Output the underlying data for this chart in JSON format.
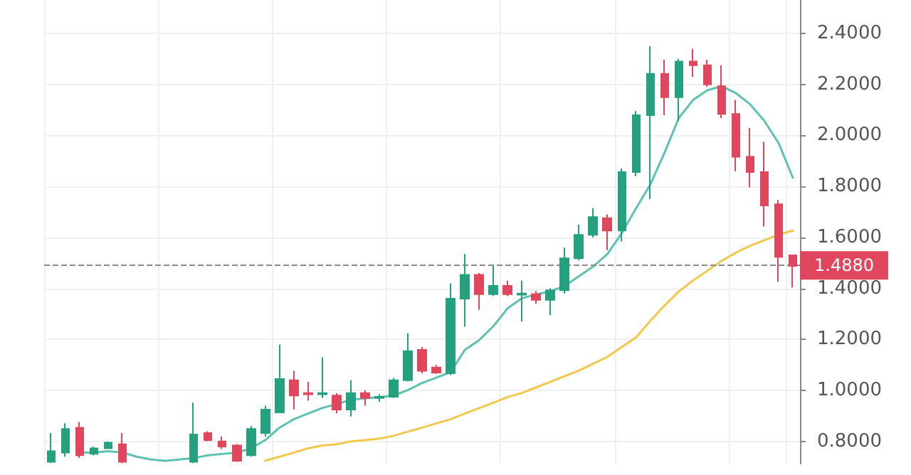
{
  "chart_data": {
    "type": "candlestick",
    "categories": [
      null,
      null,
      null,
      null,
      null,
      null,
      null,
      null,
      null,
      null,
      null,
      null,
      null,
      null,
      null,
      null,
      null,
      null,
      null,
      null,
      null,
      null,
      null,
      null,
      null,
      null,
      null,
      null,
      null,
      null,
      null,
      null,
      null,
      null,
      null,
      null,
      null,
      null,
      null,
      null,
      null,
      null,
      null,
      null,
      null,
      null,
      null,
      null,
      null,
      null,
      null,
      null,
      null
    ],
    "ohlc": [
      [
        0.72,
        0.833,
        0.715,
        0.762
      ],
      [
        0.756,
        0.871,
        0.74,
        0.849
      ],
      [
        0.854,
        0.876,
        0.735,
        0.746
      ],
      [
        0.751,
        0.78,
        0.745,
        0.773
      ],
      [
        0.773,
        0.8,
        0.77,
        0.795
      ],
      [
        0.789,
        0.833,
        0.715,
        0.72
      ],
      null,
      null,
      null,
      null,
      [
        0.72,
        0.952,
        0.715,
        0.827
      ],
      [
        0.833,
        0.84,
        0.8,
        0.805
      ],
      [
        0.8,
        0.82,
        0.77,
        0.78
      ],
      [
        0.784,
        0.79,
        0.72,
        0.724
      ],
      [
        0.746,
        0.86,
        0.74,
        0.849
      ],
      [
        0.833,
        0.94,
        0.82,
        0.925
      ],
      [
        0.914,
        1.18,
        0.91,
        1.045
      ],
      [
        1.04,
        1.077,
        0.925,
        0.98
      ],
      [
        0.99,
        1.034,
        0.96,
        0.985
      ],
      [
        0.985,
        1.13,
        0.97,
        0.99
      ],
      [
        0.98,
        0.99,
        0.91,
        0.925
      ],
      [
        0.925,
        1.04,
        0.898,
        0.99
      ],
      [
        0.99,
        1.0,
        0.94,
        0.97
      ],
      [
        0.97,
        0.985,
        0.955,
        0.975
      ],
      [
        0.975,
        1.05,
        0.97,
        1.04
      ],
      [
        1.04,
        1.225,
        1.035,
        1.154
      ],
      [
        1.159,
        1.17,
        1.067,
        1.077
      ],
      [
        1.09,
        1.1,
        1.065,
        1.07
      ],
      [
        1.067,
        1.42,
        1.06,
        1.36
      ],
      [
        1.36,
        1.535,
        1.25,
        1.453
      ],
      [
        1.453,
        1.46,
        1.317,
        1.377
      ],
      [
        1.377,
        1.49,
        1.37,
        1.41
      ],
      [
        1.41,
        1.43,
        1.37,
        1.377
      ],
      [
        1.375,
        1.43,
        1.27,
        1.38
      ],
      [
        1.377,
        1.39,
        1.34,
        1.355
      ],
      [
        1.355,
        1.4,
        1.295,
        1.393
      ],
      [
        1.393,
        1.56,
        1.38,
        1.518
      ],
      [
        1.518,
        1.65,
        1.51,
        1.61
      ],
      [
        1.61,
        1.715,
        1.6,
        1.68
      ],
      [
        1.676,
        1.69,
        1.55,
        1.627
      ],
      [
        1.627,
        1.87,
        1.584,
        1.856
      ],
      [
        1.856,
        2.095,
        1.84,
        2.079
      ],
      [
        2.079,
        2.35,
        1.75,
        2.242
      ],
      [
        2.242,
        2.297,
        2.079,
        2.15
      ],
      [
        2.15,
        2.3,
        2.057,
        2.29
      ],
      [
        2.29,
        2.34,
        2.23,
        2.275
      ],
      [
        2.275,
        2.297,
        2.19,
        2.2
      ],
      [
        2.193,
        2.275,
        2.068,
        2.084
      ],
      [
        2.084,
        2.139,
        1.86,
        1.916
      ],
      [
        1.916,
        2.03,
        1.796,
        1.856
      ],
      [
        1.856,
        1.975,
        1.643,
        1.725
      ],
      [
        1.73,
        1.747,
        1.426,
        1.524
      ],
      [
        1.53,
        1.53,
        1.404,
        1.488
      ]
    ],
    "colors": [
      "#26a17f",
      "#26a17f",
      "#e0475e",
      "#26a17f",
      "#26a17f",
      "#e0475e",
      null,
      null,
      null,
      null,
      "#26a17f",
      "#e0475e",
      "#e0475e",
      "#e0475e",
      "#26a17f",
      "#26a17f",
      "#26a17f",
      "#e0475e",
      "#e0475e",
      "#26a17f",
      "#e0475e",
      "#26a17f",
      "#e0475e",
      "#26a17f",
      "#26a17f",
      "#26a17f",
      "#e0475e",
      "#e0475e",
      "#26a17f",
      "#26a17f",
      "#e0475e",
      "#26a17f",
      "#e0475e",
      "#26a17f",
      "#e0475e",
      "#26a17f",
      "#26a17f",
      "#26a17f",
      "#26a17f",
      "#e0475e",
      "#26a17f",
      "#26a17f",
      "#26a17f",
      "#e0475e",
      "#26a17f",
      "#e0475e",
      "#e0475e",
      "#e0475e",
      "#e0475e",
      "#e0475e",
      "#e0475e",
      "#e0475e",
      "#e0475e"
    ],
    "series": [
      {
        "type": "line",
        "color": "#5cc2b3",
        "values": [
          null,
          null,
          0.756,
          0.756,
          0.762,
          0.756,
          0.74,
          0.729,
          0.724,
          0.729,
          0.735,
          0.746,
          0.751,
          0.756,
          0.773,
          0.805,
          0.854,
          0.887,
          0.909,
          0.931,
          0.947,
          0.963,
          0.969,
          0.974,
          0.98,
          1.001,
          1.029,
          1.05,
          1.072,
          1.159,
          1.197,
          1.252,
          1.322,
          1.361,
          1.377,
          1.388,
          1.41,
          1.448,
          1.486,
          1.535,
          1.616,
          1.714,
          1.807,
          1.932,
          2.068,
          2.139,
          2.177,
          2.193,
          2.166,
          2.122,
          2.057,
          1.97,
          1.834
        ]
      },
      {
        "type": "line",
        "color": "#f2c84b",
        "values": [
          null,
          null,
          null,
          null,
          null,
          null,
          null,
          null,
          null,
          null,
          null,
          null,
          null,
          null,
          null,
          0.724,
          0.74,
          0.756,
          0.773,
          0.784,
          0.789,
          0.8,
          0.805,
          0.811,
          0.822,
          0.838,
          0.854,
          0.871,
          0.887,
          0.909,
          0.931,
          0.952,
          0.974,
          0.99,
          1.012,
          1.034,
          1.056,
          1.078,
          1.105,
          1.132,
          1.17,
          1.208,
          1.273,
          1.333,
          1.388,
          1.431,
          1.469,
          1.508,
          1.54,
          1.567,
          1.589,
          1.611,
          1.627
        ]
      }
    ],
    "ylim": [
      0.713,
      2.531
    ],
    "yticks": [
      {
        "value": 0.8,
        "label": "0.8000"
      },
      {
        "value": 1.0,
        "label": "1.0000"
      },
      {
        "value": 1.2,
        "label": "1.2000"
      },
      {
        "value": 1.4,
        "label": "1.4000"
      },
      {
        "value": 1.6,
        "label": "1.6000"
      },
      {
        "value": 1.8,
        "label": "1.8000"
      },
      {
        "value": 2.0,
        "label": "2.0000"
      },
      {
        "value": 2.2,
        "label": "2.2000"
      },
      {
        "value": 2.4,
        "label": "2.4000"
      }
    ],
    "ref_lines": [
      {
        "axis": "y",
        "value": 1.488,
        "label": "1.4880",
        "color": "#8a8a8a",
        "line_style": "dashed"
      }
    ],
    "grid": true,
    "marker": "none",
    "line_style": "solid"
  }
}
